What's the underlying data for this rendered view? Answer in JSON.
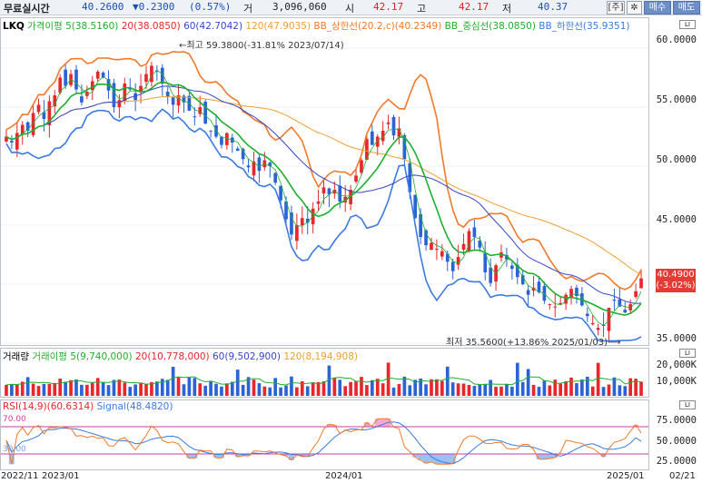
{
  "topbar": {
    "label": "무료실시간",
    "price": "40.2600",
    "change": "▼0.2300",
    "change_pct": "(0.57%)",
    "volume_label": "거",
    "volume": "3,096,060",
    "open_label": "시",
    "open": "42.17",
    "high_label": "고",
    "high": "42.17",
    "low_label": "저",
    "low": "40.37",
    "btn_order": "[주]",
    "btn_gear": "✲",
    "btn_buy": "매수",
    "btn_sell": "매도"
  },
  "price_panel": {
    "legend": [
      "LKQ",
      "가격이평 5(38.5160)",
      "20(38.0850)",
      "60(42.7042)",
      "120(47.9035)",
      "BB_상한선(20.2,c)(40.2349)",
      "BB_중심선(38.0850)",
      "BB_하한선(35.9351)"
    ],
    "high_note": "최고 59.3800(-31.81% 2023/07/14)",
    "low_note": "최저 35.5600(+13.86% 2025/01/03)",
    "scale": [
      "60.0000",
      "55.0000",
      "50.0000",
      "45.0000",
      "35.0000"
    ],
    "current": "40.4900",
    "current_pct": "(-3.02%)"
  },
  "volume_panel": {
    "legend": [
      "거래량",
      "거래이평 5(9,740,000)",
      "20(10,778,000)",
      "60(9,502,900)",
      "120(8,194,908)"
    ],
    "scale": [
      "20,000K",
      "10,000K"
    ]
  },
  "rsi_panel": {
    "legend": [
      "RSI(14,9)(60.6314)",
      "Signal(48.4820)"
    ],
    "level_high": "70.00",
    "level_low": "30.00",
    "scale": [
      "75.0000",
      "50.0000",
      "25.0000"
    ]
  },
  "x_axis": [
    "2022/11",
    "2023/01",
    "2024/01",
    "2025/01",
    "02/21"
  ],
  "colors": {
    "up": "#e8262c",
    "down": "#2b63d6",
    "ma5": "#1fae2f",
    "ma20": "#e8262c",
    "ma60": "#3646c8",
    "ma120": "#f0a030",
    "bb_upper": "#f07a2a",
    "bb_mid": "#1fae2f",
    "bb_lower": "#3b7ae0"
  },
  "chart_data": {
    "type": "candlestick",
    "y_range": [
      35,
      61
    ],
    "x_range_dates": [
      "2022/11",
      "2025/02/21"
    ],
    "closes": [
      52.5,
      52.0,
      52.8,
      53.5,
      53.0,
      54.5,
      55.2,
      54.0,
      55.5,
      56.0,
      57.5,
      56.8,
      57.8,
      56.5,
      55.4,
      56.3,
      57.2,
      58.0,
      57.5,
      56.4,
      55.0,
      55.6,
      57.0,
      56.5,
      55.6,
      56.8,
      57.8,
      58.5,
      58.0,
      57.0,
      55.9,
      55.2,
      56.0,
      55.4,
      54.7,
      54.2,
      55.0,
      53.6,
      53.0,
      52.5,
      51.8,
      52.8,
      52.0,
      51.3,
      50.6,
      49.9,
      50.4,
      49.6,
      50.5,
      50.0,
      48.6,
      47.1,
      45.5,
      44.2,
      45.0,
      45.6,
      45.2,
      46.4,
      47.0,
      48.2,
      47.6,
      48.0,
      47.0,
      47.4,
      48.0,
      49.2,
      50.5,
      52.3,
      51.8,
      52.5,
      53.0,
      53.7,
      52.6,
      53.2,
      50.6,
      47.8,
      45.6,
      44.0,
      43.3,
      43.5,
      43.0,
      42.8,
      41.9,
      41.1,
      42.3,
      43.4,
      44.5,
      44.0,
      43.1,
      41.0,
      40.1,
      41.6,
      42.7,
      42.1,
      41.3,
      40.6,
      40.0,
      39.1,
      39.7,
      39.3,
      38.6,
      38.3,
      38.1,
      38.4,
      39.1,
      39.6,
      39.0,
      38.2,
      37.3,
      36.7,
      36.3,
      36.5,
      38.0,
      38.6,
      38.1,
      37.6,
      38.3,
      39.4,
      40.49
    ],
    "ma_series": [
      "MA5",
      "MA20",
      "MA60",
      "MA120",
      "BB upper",
      "BB middle",
      "BB lower"
    ],
    "ma5_last": 38.516,
    "ma20_last": 38.085,
    "ma60_last": 42.7042,
    "ma120_last": 47.9035,
    "bb_upper_last": 40.2349,
    "bb_mid_last": 38.085,
    "bb_lower_last": 35.9351,
    "high": 59.38,
    "low": 35.56,
    "rsi_last": 60.6314,
    "signal_last": 48.482,
    "volume_ma": {
      "ma5": 9740000,
      "ma20": 10778000,
      "ma60": 9502900,
      "ma120": 8194908
    }
  }
}
